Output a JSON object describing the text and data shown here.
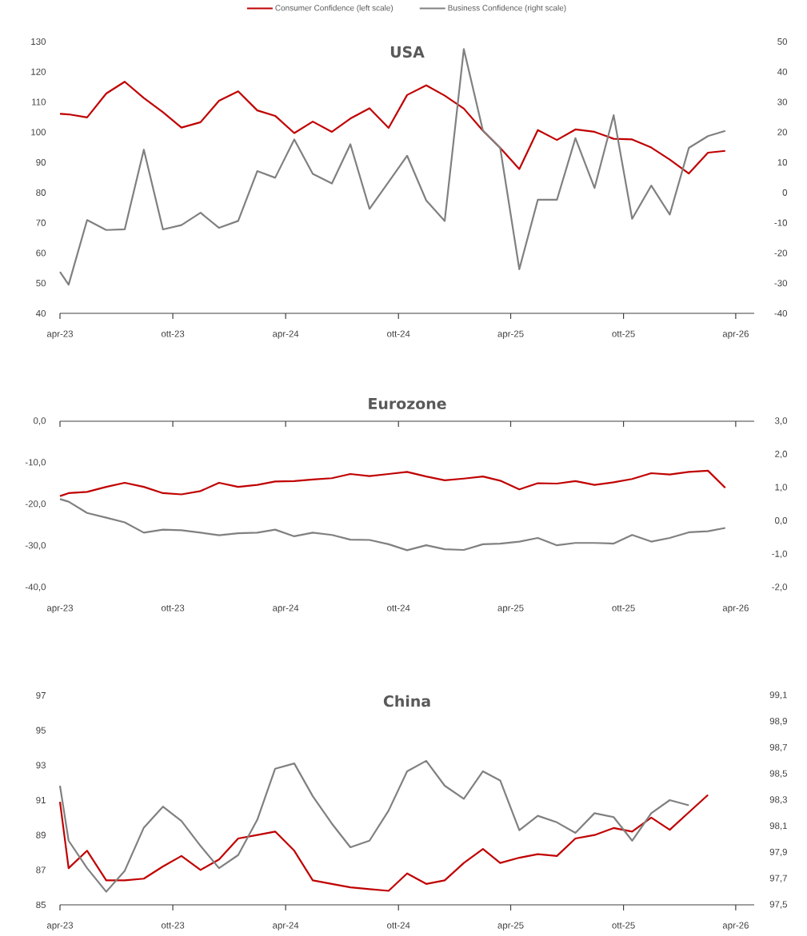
{
  "chart_data": [
    {
      "type": "line",
      "title": "USA",
      "legend": "top",
      "x": [
        "2023-04-01",
        "2023-04-15",
        "2023-05-15",
        "2023-06-15",
        "2023-07-15",
        "2023-08-15",
        "2023-09-15",
        "2023-10-15",
        "2023-11-15",
        "2023-12-15",
        "2024-01-15",
        "2024-02-15",
        "2024-03-15",
        "2024-04-15",
        "2024-05-15",
        "2024-06-15",
        "2024-07-15",
        "2024-08-15",
        "2024-09-15",
        "2024-10-15",
        "2024-11-15",
        "2024-12-15",
        "2025-01-15",
        "2025-02-15",
        "2025-03-15",
        "2025-04-15",
        "2025-05-15",
        "2025-06-15",
        "2025-07-15",
        "2025-08-15",
        "2025-09-15",
        "2025-10-15",
        "2025-11-15",
        "2025-12-15",
        "2026-01-15",
        "2026-02-15",
        "2026-03-15"
      ],
      "xlim": [
        "2023-04-01",
        "2026-05-01"
      ],
      "xticks": [
        {
          "value": "2023-04-01",
          "label": "apr-23"
        },
        {
          "value": "2023-10-01",
          "label": "ott-23"
        },
        {
          "value": "2024-04-01",
          "label": "apr-24"
        },
        {
          "value": "2024-10-01",
          "label": "ott-24"
        },
        {
          "value": "2025-04-01",
          "label": "apr-25"
        },
        {
          "value": "2025-10-01",
          "label": "ott-25"
        },
        {
          "value": "2026-04-01",
          "label": "apr-26"
        }
      ],
      "ylim": [
        40,
        130
      ],
      "yticks": [
        40,
        50,
        60,
        70,
        80,
        90,
        100,
        110,
        120,
        130
      ],
      "y2lim": [
        -40,
        50
      ],
      "y2ticks": [
        -40,
        -30,
        -20,
        -10,
        0,
        10,
        20,
        30,
        40,
        50
      ],
      "series": [
        {
          "name": "Consumer Confidence (left scale)",
          "color": "#c00000",
          "values": [
            106.1,
            105.9,
            104.9,
            112.8,
            116.7,
            111.3,
            106.6,
            101.5,
            103.3,
            110.4,
            113.5,
            107.2,
            105.4,
            99.7,
            103.5,
            100.1,
            104.5,
            107.9,
            101.4,
            112.3,
            115.5,
            112.1,
            107.8,
            100.5,
            94.8,
            87.8,
            100.7,
            97.4,
            100.9,
            100.1,
            97.8,
            97.6,
            94.9,
            90.9,
            86.3,
            93.2,
            93.8
          ]
        },
        {
          "name": "Business Confidence (right scale)",
          "color": "#808080",
          "axis": "y2",
          "values": [
            -26.3,
            -30.5,
            -9.1,
            -12.4,
            -12.2,
            14.2,
            -12.2,
            -10.8,
            -6.7,
            -11.7,
            -9.4,
            7.1,
            4.9,
            17.6,
            6.2,
            3.0,
            16.0,
            -5.4,
            3.5,
            12.2,
            -2.6,
            -9.4,
            47.5,
            20.5,
            14.8,
            -25.4,
            -2.4,
            -2.4,
            18.0,
            1.5,
            25.6,
            -8.7,
            2.3,
            -7.3,
            14.8,
            18.7,
            20.4
          ]
        }
      ]
    },
    {
      "type": "line",
      "title": "Eurozone",
      "x": [
        "2023-04-01",
        "2023-04-15",
        "2023-05-15",
        "2023-06-15",
        "2023-07-15",
        "2023-08-15",
        "2023-09-15",
        "2023-10-15",
        "2023-11-15",
        "2023-12-15",
        "2024-01-15",
        "2024-02-15",
        "2024-03-15",
        "2024-04-15",
        "2024-05-15",
        "2024-06-15",
        "2024-07-15",
        "2024-08-15",
        "2024-09-15",
        "2024-10-15",
        "2024-11-15",
        "2024-12-15",
        "2025-01-15",
        "2025-02-15",
        "2025-03-15",
        "2025-04-15",
        "2025-05-15",
        "2025-06-15",
        "2025-07-15",
        "2025-08-15",
        "2025-09-15",
        "2025-10-15",
        "2025-11-15",
        "2025-12-15",
        "2026-01-15",
        "2026-02-15",
        "2026-03-15"
      ],
      "xlim": [
        "2023-04-01",
        "2026-05-01"
      ],
      "xticks": [
        {
          "value": "2023-04-01",
          "label": "apr-23"
        },
        {
          "value": "2023-10-01",
          "label": "ott-23"
        },
        {
          "value": "2024-04-01",
          "label": "apr-24"
        },
        {
          "value": "2024-10-01",
          "label": "ott-24"
        },
        {
          "value": "2025-04-01",
          "label": "apr-25"
        },
        {
          "value": "2025-10-01",
          "label": "ott-25"
        },
        {
          "value": "2026-04-01",
          "label": "apr-26"
        }
      ],
      "ylim": [
        -40,
        0
      ],
      "yticks": [
        {
          "value": -40,
          "label": "-40,0"
        },
        {
          "value": -30,
          "label": "-30,0"
        },
        {
          "value": -20,
          "label": "-20,0"
        },
        {
          "value": -10,
          "label": "-10,0"
        },
        {
          "value": 0,
          "label": "0,0"
        }
      ],
      "y2lim": [
        -2,
        3
      ],
      "y2ticks": [
        {
          "value": -2,
          "label": "-2,0"
        },
        {
          "value": -1,
          "label": "-1,0"
        },
        {
          "value": 0,
          "label": "0,0"
        },
        {
          "value": 1,
          "label": "1,0"
        },
        {
          "value": 2,
          "label": "2,0"
        },
        {
          "value": 3,
          "label": "3,0"
        }
      ],
      "series": [
        {
          "color": "#c00000",
          "values": [
            -18.0,
            -17.3,
            -17.0,
            -15.8,
            -14.8,
            -15.8,
            -17.3,
            -17.6,
            -16.8,
            -14.8,
            -15.8,
            -15.3,
            -14.5,
            -14.4,
            -14.0,
            -13.7,
            -12.7,
            -13.2,
            -12.7,
            -12.2,
            -13.3,
            -14.2,
            -13.8,
            -13.3,
            -14.3,
            -16.4,
            -14.9,
            -15.0,
            -14.4,
            -15.3,
            -14.7,
            -13.9,
            -12.5,
            -12.8,
            -12.2,
            -11.9,
            -16.0
          ]
        },
        {
          "color": "#808080",
          "axis": "y2",
          "values": [
            0.66,
            0.58,
            0.24,
            0.1,
            -0.04,
            -0.35,
            -0.26,
            -0.28,
            -0.35,
            -0.43,
            -0.37,
            -0.35,
            -0.26,
            -0.46,
            -0.35,
            -0.42,
            -0.56,
            -0.57,
            -0.7,
            -0.88,
            -0.73,
            -0.85,
            -0.87,
            -0.7,
            -0.68,
            -0.62,
            -0.51,
            -0.73,
            -0.66,
            -0.66,
            -0.68,
            -0.42,
            -0.62,
            -0.51,
            -0.34,
            -0.31,
            -0.21
          ]
        }
      ]
    },
    {
      "type": "line",
      "title": "China",
      "x": [
        "2023-04-01",
        "2023-04-15",
        "2023-05-15",
        "2023-06-15",
        "2023-07-15",
        "2023-08-15",
        "2023-09-15",
        "2023-10-15",
        "2023-11-15",
        "2023-12-15",
        "2024-01-15",
        "2024-02-15",
        "2024-03-15",
        "2024-04-15",
        "2024-05-15",
        "2024-06-15",
        "2024-07-15",
        "2024-08-15",
        "2024-09-15",
        "2024-10-15",
        "2024-11-15",
        "2024-12-15",
        "2025-01-15",
        "2025-02-15",
        "2025-03-15",
        "2025-04-15",
        "2025-05-15",
        "2025-06-15",
        "2025-07-15",
        "2025-08-15",
        "2025-09-15",
        "2025-10-15",
        "2025-11-15",
        "2025-12-15",
        "2026-01-15",
        "2026-02-15"
      ],
      "xlim": [
        "2023-04-01",
        "2026-05-01"
      ],
      "xticks": [
        {
          "value": "2023-04-01",
          "label": "apr-23"
        },
        {
          "value": "2023-10-01",
          "label": "ott-23"
        },
        {
          "value": "2024-04-01",
          "label": "apr-24"
        },
        {
          "value": "2024-10-01",
          "label": "ott-24"
        },
        {
          "value": "2025-04-01",
          "label": "apr-25"
        },
        {
          "value": "2025-10-01",
          "label": "ott-25"
        },
        {
          "value": "2026-04-01",
          "label": "apr-26"
        }
      ],
      "ylim": [
        85,
        97
      ],
      "yticks": [
        85,
        87,
        89,
        91,
        93,
        95,
        97
      ],
      "y2lim": [
        97.5,
        99.1
      ],
      "y2ticks": [
        {
          "value": 97.5,
          "label": "97,5"
        },
        {
          "value": 97.7,
          "label": "97,7"
        },
        {
          "value": 97.9,
          "label": "97,9"
        },
        {
          "value": 98.1,
          "label": "98,1"
        },
        {
          "value": 98.3,
          "label": "98,3"
        },
        {
          "value": 98.5,
          "label": "98,5"
        },
        {
          "value": 98.7,
          "label": "98,7"
        },
        {
          "value": 98.9,
          "label": "98,9"
        },
        {
          "value": 99.1,
          "label": "99,1"
        }
      ],
      "series": [
        {
          "color": "#c00000",
          "values": [
            90.9,
            87.1,
            88.1,
            86.4,
            86.4,
            86.5,
            87.2,
            87.8,
            87.0,
            87.6,
            88.8,
            89.0,
            89.2,
            88.1,
            86.4,
            86.2,
            86.0,
            85.9,
            85.8,
            86.8,
            86.2,
            86.4,
            87.4,
            88.2,
            87.4,
            87.7,
            87.9,
            87.8,
            88.8,
            89.0,
            89.4,
            89.2,
            90.0,
            89.3,
            90.3,
            91.3
          ]
        },
        {
          "color": "#808080",
          "axis": "y2",
          "values": [
            98.41,
            97.99,
            97.78,
            97.6,
            97.76,
            98.09,
            98.25,
            98.14,
            97.95,
            97.78,
            97.88,
            98.15,
            98.54,
            98.58,
            98.33,
            98.12,
            97.94,
            97.99,
            98.22,
            98.52,
            98.6,
            98.41,
            98.31,
            98.52,
            98.45,
            98.07,
            98.18,
            98.13,
            98.05,
            98.2,
            98.17,
            97.99,
            98.2,
            98.3,
            98.26,
            null
          ]
        }
      ]
    }
  ]
}
